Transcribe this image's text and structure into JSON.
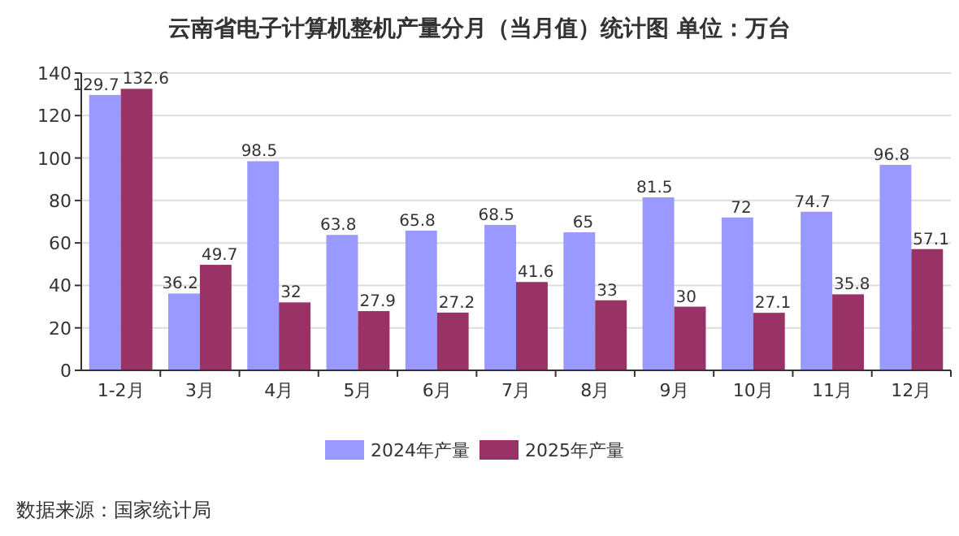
{
  "chart_data": {
    "type": "bar",
    "title": "云南省电子计算机整机产量分月（当月值）统计图 单位：万台",
    "categories": [
      "1-2月",
      "3月",
      "4月",
      "5月",
      "6月",
      "7月",
      "8月",
      "9月",
      "10月",
      "11月",
      "12月"
    ],
    "series": [
      {
        "name": "2024年产量",
        "color": "#9999ff",
        "values": [
          129.7,
          36.2,
          98.5,
          63.8,
          65.8,
          68.5,
          65,
          81.5,
          72,
          74.7,
          96.8
        ]
      },
      {
        "name": "2025年产量",
        "color": "#993366",
        "values": [
          132.6,
          49.7,
          32,
          27.9,
          27.2,
          41.6,
          33,
          30,
          27.1,
          35.8,
          57.1
        ]
      }
    ],
    "ylim": [
      0,
      140
    ],
    "yticks": [
      0,
      20,
      40,
      60,
      80,
      100,
      120,
      140
    ],
    "grid": "y",
    "legend": "bottom",
    "data_labels": true,
    "annotations": [
      "数据来源：国家统计局"
    ]
  }
}
